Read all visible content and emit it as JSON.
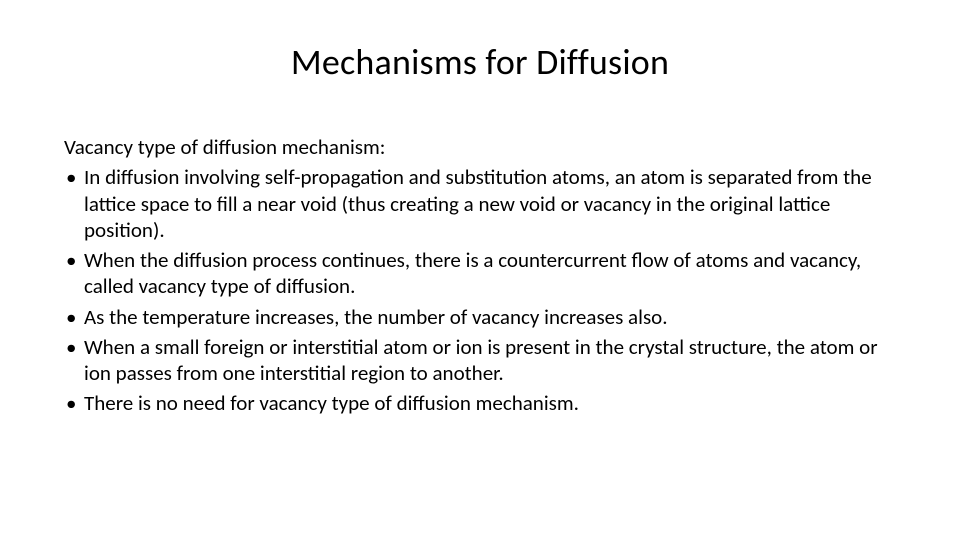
{
  "slide": {
    "title": "Mechanisms for Diffusion",
    "subtitle": "Vacancy type of diffusion mechanism:",
    "bullets": [
      "In diffusion involving self-propagation and substitution atoms, an atom is separated from the lattice space to fill a near void (thus creating a new void or vacancy in the original lattice position).",
      "When the diffusion process continues, there is a countercurrent flow of atoms and vacancy, called vacancy type of diffusion.",
      "As the temperature increases, the number of vacancy increases also.",
      "When a small foreign or interstitial atom or ion is present in the crystal structure, the atom or ion passes from one interstitial region to another.",
      "There is no need for vacancy type of diffusion mechanism."
    ],
    "styling": {
      "background_color": "#ffffff",
      "text_color": "#000000",
      "title_fontsize": 36,
      "body_fontsize": 21,
      "font_family": "Calibri",
      "bullet_marker": "•"
    }
  }
}
